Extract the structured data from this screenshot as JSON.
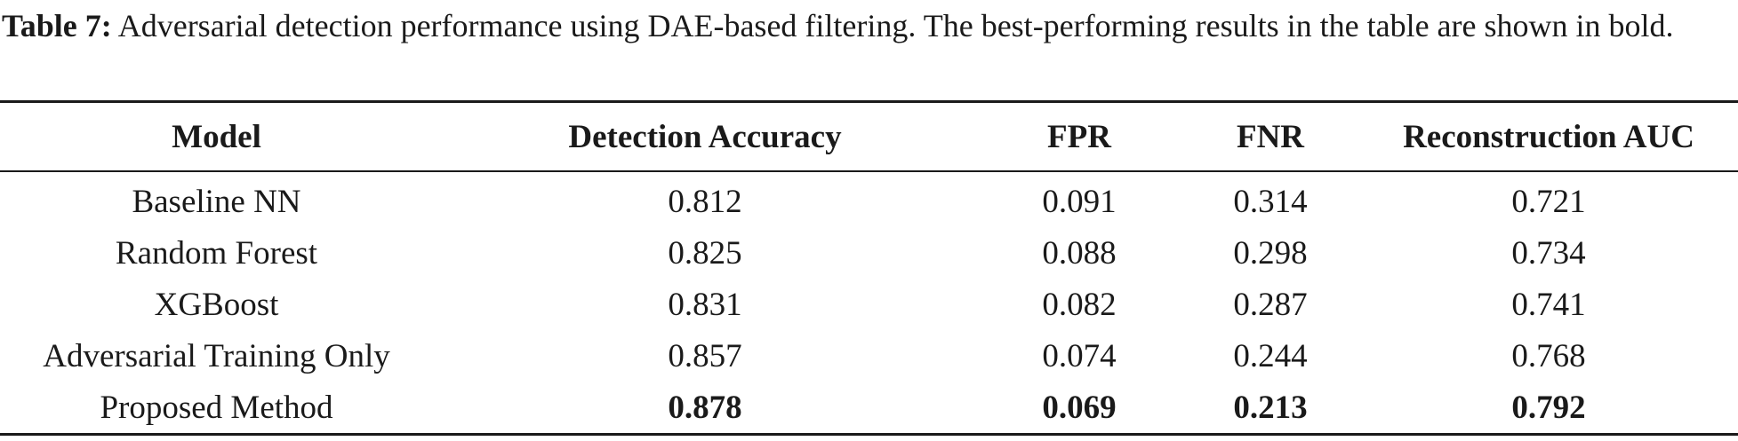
{
  "caption": {
    "label": "Table 7:",
    "text": " Adversarial detection performance using DAE-based filtering. The best-performing results in the table are shown in bold."
  },
  "table": {
    "headers": [
      "Model",
      "Detection Accuracy",
      "FPR",
      "FNR",
      "Reconstruction AUC"
    ],
    "rows": [
      {
        "model": "Baseline NN",
        "detection_accuracy": "0.812",
        "fpr": "0.091",
        "fnr": "0.314",
        "reconstruction_auc": "0.721"
      },
      {
        "model": "Random Forest",
        "detection_accuracy": "0.825",
        "fpr": "0.088",
        "fnr": "0.298",
        "reconstruction_auc": "0.734"
      },
      {
        "model": "XGBoost",
        "detection_accuracy": "0.831",
        "fpr": "0.082",
        "fnr": "0.287",
        "reconstruction_auc": "0.741"
      },
      {
        "model": "Adversarial Training Only",
        "detection_accuracy": "0.857",
        "fpr": "0.074",
        "fnr": "0.244",
        "reconstruction_auc": "0.768"
      },
      {
        "model": "Proposed Method",
        "detection_accuracy": "0.878",
        "fpr": "0.069",
        "fnr": "0.213",
        "reconstruction_auc": "0.792"
      }
    ],
    "bold_row": "Proposed Method"
  }
}
